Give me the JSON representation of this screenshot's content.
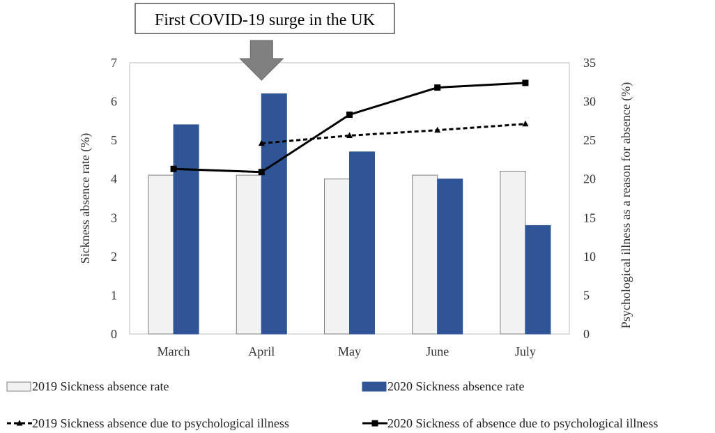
{
  "chart_data": {
    "type": "bar",
    "categories": [
      "March",
      "April",
      "May",
      "June",
      "July"
    ],
    "series": [
      {
        "name": "2019 Sickness absence rate",
        "kind": "bar",
        "axis": "left",
        "color": "#f2f2f2",
        "values": [
          4.1,
          4.1,
          4.0,
          4.1,
          4.2
        ]
      },
      {
        "name": "2020 Sickness absence rate",
        "kind": "bar",
        "axis": "left",
        "color": "#2f5597",
        "values": [
          5.4,
          6.2,
          4.7,
          4.0,
          2.8
        ]
      },
      {
        "name": "2019 Sickness absence due to psychological illness",
        "kind": "line",
        "style": "dotted",
        "marker": "triangle",
        "axis": "right",
        "color": "#000000",
        "values": [
          null,
          24.6,
          25.6,
          26.3,
          27.1
        ]
      },
      {
        "name": "2020 Sickness of absence due to psychological illness",
        "kind": "line",
        "style": "solid",
        "marker": "square",
        "axis": "right",
        "color": "#000000",
        "values": [
          21.3,
          20.9,
          28.3,
          31.8,
          32.4
        ]
      }
    ],
    "ylabel": "Sickness  absence rate (%)",
    "y2label": "Psychological  illness as a reason for absence  (%)",
    "ylim": [
      0,
      7
    ],
    "y2lim": [
      0,
      35
    ],
    "yticks": [
      "0",
      "1",
      "2",
      "3",
      "4",
      "5",
      "6",
      "7"
    ],
    "y2ticks": [
      "0",
      "5",
      "10",
      "15",
      "20",
      "25",
      "30",
      "35"
    ],
    "grid": false,
    "legend_position": "bottom",
    "annotation": {
      "text": "First COVID-19 surge in the UK",
      "category": "April",
      "icon": "down-arrow-icon"
    }
  }
}
